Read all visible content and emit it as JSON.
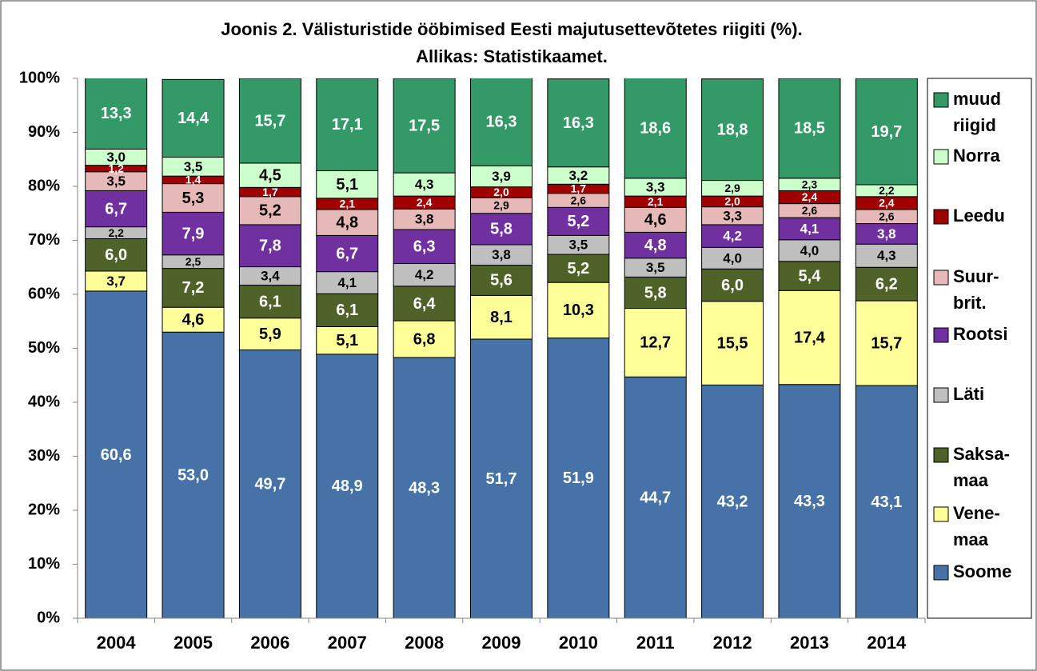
{
  "chart_data": {
    "type": "stacked_bar",
    "title": "Joonis 2. Välisturistide ööbimised Eesti majutusettevõtetes riigiti (%).",
    "subtitle": "Allikas: Statistikaamet.",
    "categories": [
      "2004",
      "2005",
      "2006",
      "2007",
      "2008",
      "2009",
      "2010",
      "2011",
      "2012",
      "2013",
      "2014"
    ],
    "ylim": [
      0,
      100
    ],
    "yticks": [
      {
        "value": 0,
        "label": "0%"
      },
      {
        "value": 10,
        "label": "10%"
      },
      {
        "value": 20,
        "label": "20%"
      },
      {
        "value": 30,
        "label": "30%"
      },
      {
        "value": 40,
        "label": "40%"
      },
      {
        "value": 50,
        "label": "50%"
      },
      {
        "value": 60,
        "label": "60%"
      },
      {
        "value": 70,
        "label": "70%"
      },
      {
        "value": 80,
        "label": "80%"
      },
      {
        "value": 90,
        "label": "90%"
      },
      {
        "value": 100,
        "label": "100%"
      }
    ],
    "legend": "right",
    "series": [
      {
        "name": "Soome",
        "color": "#4672a8",
        "label_color": "#ffffff",
        "values": [
          60.6,
          53.0,
          49.7,
          48.9,
          48.3,
          51.7,
          51.9,
          44.7,
          43.2,
          43.3,
          43.1
        ],
        "value_labels": [
          "60,6",
          "53,0",
          "49,7",
          "48,9",
          "48,3",
          "51,7",
          "51,9",
          "44,7",
          "43,2",
          "43,3",
          "43,1"
        ]
      },
      {
        "name": "Vene-maa",
        "color": "#ffff99",
        "label_color": "#000000",
        "values": [
          3.7,
          4.6,
          5.9,
          5.1,
          6.8,
          8.1,
          10.3,
          12.7,
          15.5,
          17.4,
          15.7
        ],
        "value_labels": [
          "3,7",
          "4,6",
          "5,9",
          "5,1",
          "6,8",
          "8,1",
          "10,3",
          "12,7",
          "15,5",
          "17,4",
          "15,7"
        ]
      },
      {
        "name": "Saksa-maa",
        "color": "#4f6228",
        "label_color": "#ffffff",
        "values": [
          6.0,
          7.2,
          6.1,
          6.1,
          6.4,
          5.6,
          5.2,
          5.8,
          6.0,
          5.4,
          6.2
        ],
        "value_labels": [
          "6,0",
          "7,2",
          "6,1",
          "6,1",
          "6,4",
          "5,6",
          "5,2",
          "5,8",
          "6,0",
          "5,4",
          "6,2"
        ]
      },
      {
        "name": "Läti",
        "color": "#bfbfbf",
        "label_color": "#000000",
        "values": [
          2.2,
          2.5,
          3.4,
          4.1,
          4.2,
          3.8,
          3.5,
          3.5,
          4.0,
          4.0,
          4.3
        ],
        "value_labels": [
          "2,2",
          "2,5",
          "3,4",
          "4,1",
          "4,2",
          "3,8",
          "3,5",
          "3,5",
          "4,0",
          "4,0",
          "4,3"
        ]
      },
      {
        "name": "Rootsi",
        "color": "#7030a0",
        "label_color": "#ffffff",
        "values": [
          6.7,
          7.9,
          7.8,
          6.7,
          6.3,
          5.8,
          5.2,
          4.8,
          4.2,
          4.1,
          3.8
        ],
        "value_labels": [
          "6,7",
          "7,9",
          "7,8",
          "6,7",
          "6,3",
          "5,8",
          "5,2",
          "4,8",
          "4,2",
          "4,1",
          "3,8"
        ]
      },
      {
        "name": "Suur-brit.",
        "color": "#e6b9b8",
        "label_color": "#000000",
        "values": [
          3.5,
          5.3,
          5.2,
          4.8,
          3.8,
          2.9,
          2.6,
          4.6,
          3.3,
          2.6,
          2.6
        ],
        "value_labels": [
          "3,5",
          "5,3",
          "5,2",
          "4,8",
          "3,8",
          "2,9",
          "2,6",
          "4,6",
          "3,3",
          "2,6",
          "2,6"
        ]
      },
      {
        "name": "Leedu",
        "color": "#a00000",
        "label_color": "#ffffff",
        "values": [
          1.2,
          1.4,
          1.7,
          2.1,
          2.4,
          2.0,
          1.7,
          2.1,
          2.0,
          2.4,
          2.4
        ],
        "value_labels": [
          "1,2",
          "1,4",
          "1,7",
          "2,1",
          "2,4",
          "2,0",
          "1,7",
          "2,1",
          "2,0",
          "2,4",
          "2,4"
        ]
      },
      {
        "name": "Norra",
        "color": "#ccffcc",
        "label_color": "#000000",
        "values": [
          3.0,
          3.5,
          4.5,
          5.1,
          4.3,
          3.9,
          3.2,
          3.3,
          2.9,
          2.3,
          2.2
        ],
        "value_labels": [
          "3,0",
          "3,5",
          "4,5",
          "5,1",
          "4,3",
          "3,9",
          "3,2",
          "3,3",
          "2,9",
          "2,3",
          "2,2"
        ]
      },
      {
        "name": "muud riigid",
        "color": "#339966",
        "label_color": "#ffffff",
        "values": [
          13.3,
          14.4,
          15.7,
          17.1,
          17.5,
          16.3,
          16.3,
          18.6,
          18.8,
          18.5,
          19.7
        ],
        "value_labels": [
          "13,3",
          "14,4",
          "15,7",
          "17,1",
          "17,5",
          "16,3",
          "16,3",
          "18,6",
          "18,8",
          "18,5",
          "19,7"
        ]
      }
    ]
  }
}
